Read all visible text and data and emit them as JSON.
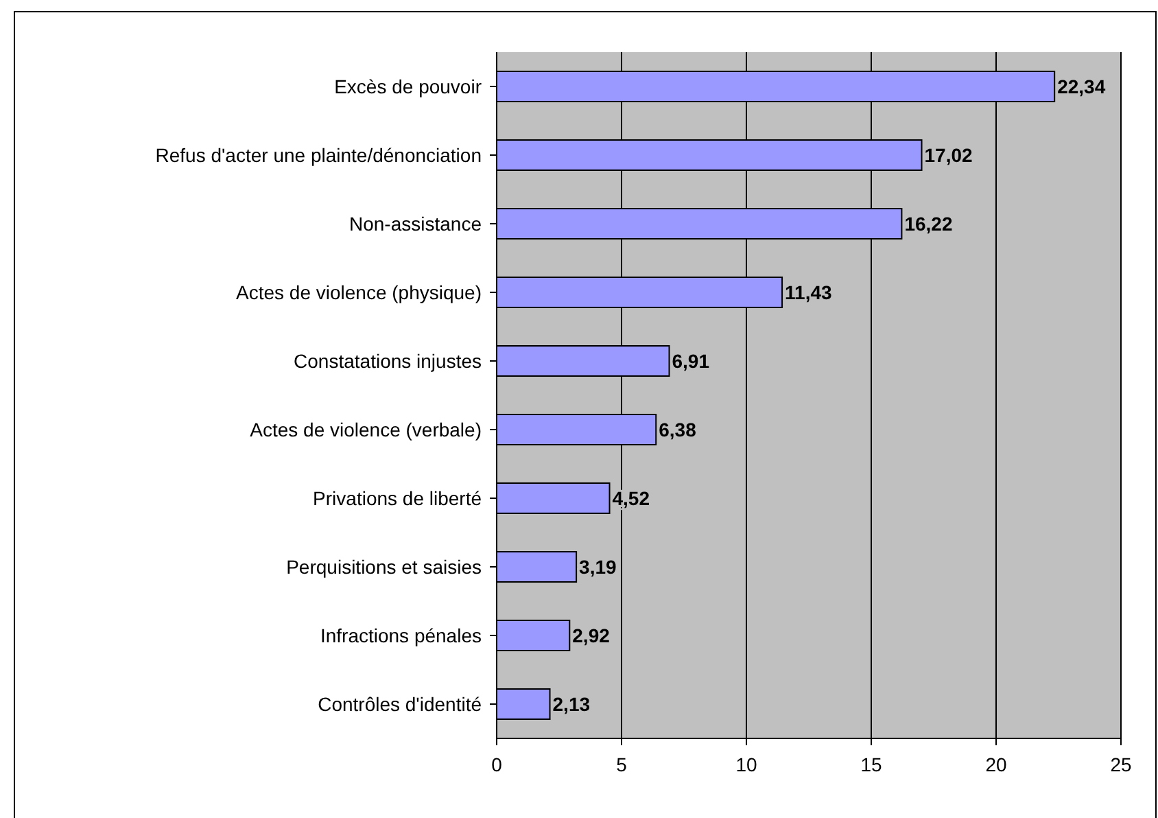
{
  "chart_data": {
    "type": "bar",
    "orientation": "horizontal",
    "categories": [
      "Excès de pouvoir",
      "Refus d'acter une plainte/dénonciation",
      "Non-assistance",
      "Actes de violence (physique)",
      "Constatations injustes",
      "Actes de violence (verbale)",
      "Privations de liberté",
      "Perquisitions et saisies",
      "Infractions pénales",
      "Contrôles d'identité"
    ],
    "values": [
      22.34,
      17.02,
      16.22,
      11.43,
      6.91,
      6.38,
      4.52,
      3.19,
      2.92,
      2.13
    ],
    "value_labels": [
      "22,34",
      "17,02",
      "16,22",
      "11,43",
      "6,91",
      "6,38",
      "4,52",
      "3,19",
      "2,92",
      "2,13"
    ],
    "color": "#9999ff",
    "xlim": [
      0,
      25
    ],
    "xticks": [
      0,
      5,
      10,
      15,
      20,
      25
    ],
    "grid": "x"
  }
}
